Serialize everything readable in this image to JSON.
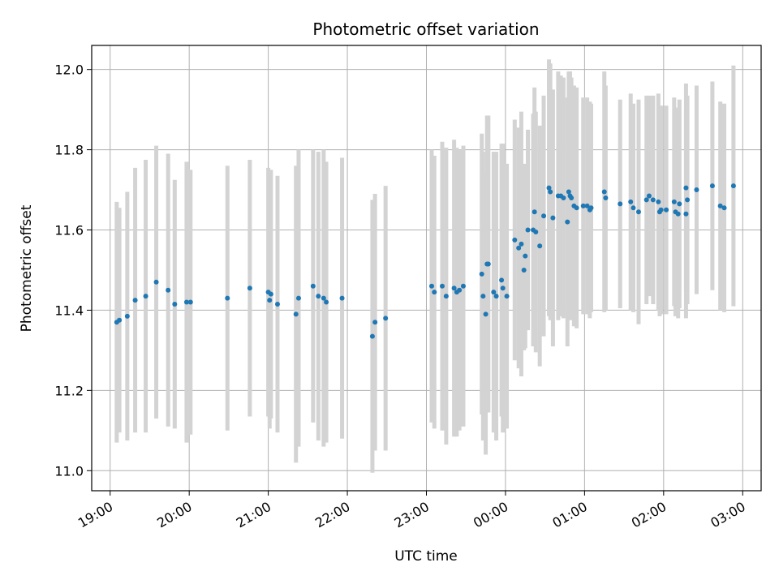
{
  "chart_data": {
    "type": "scatter",
    "title": "Photometric offset variation",
    "xlabel": "UTC time",
    "ylabel": "Photometric offset",
    "xlim": [
      "18:46",
      "03:14"
    ],
    "ylim": [
      10.95,
      12.06
    ],
    "x_ticks": [
      "19:00",
      "20:00",
      "21:00",
      "22:00",
      "23:00",
      "00:00",
      "01:00",
      "02:00",
      "03:00"
    ],
    "y_ticks": [
      "11.0",
      "11.2",
      "11.4",
      "11.6",
      "11.8",
      "12.0"
    ],
    "grid": true,
    "colors": {
      "point": "#1f77b4",
      "errorbar": "#d3d3d3",
      "grid": "#b0b0b0"
    },
    "series": [
      {
        "points": [
          {
            "x": "19:05",
            "y": 11.37,
            "err": 0.3
          },
          {
            "x": "19:07",
            "y": 11.375,
            "err": 0.28
          },
          {
            "x": "19:13",
            "y": 11.385,
            "err": 0.31
          },
          {
            "x": "19:19",
            "y": 11.425,
            "err": 0.33
          },
          {
            "x": "19:27",
            "y": 11.435,
            "err": 0.34
          },
          {
            "x": "19:35",
            "y": 11.47,
            "err": 0.34
          },
          {
            "x": "19:44",
            "y": 11.45,
            "err": 0.34
          },
          {
            "x": "19:49",
            "y": 11.415,
            "err": 0.31
          },
          {
            "x": "19:58",
            "y": 11.42,
            "err": 0.35
          },
          {
            "x": "20:01",
            "y": 11.42,
            "err": 0.33
          },
          {
            "x": "20:29",
            "y": 11.43,
            "err": 0.33
          },
          {
            "x": "20:46",
            "y": 11.455,
            "err": 0.32
          },
          {
            "x": "21:00",
            "y": 11.445,
            "err": 0.31
          },
          {
            "x": "21:01",
            "y": 11.425,
            "err": 0.32
          },
          {
            "x": "21:02",
            "y": 11.44,
            "err": 0.31
          },
          {
            "x": "21:07",
            "y": 11.415,
            "err": 0.32
          },
          {
            "x": "21:21",
            "y": 11.39,
            "err": 0.37
          },
          {
            "x": "21:23",
            "y": 11.43,
            "err": 0.37
          },
          {
            "x": "21:34",
            "y": 11.46,
            "err": 0.34
          },
          {
            "x": "21:38",
            "y": 11.435,
            "err": 0.36
          },
          {
            "x": "21:42",
            "y": 11.43,
            "err": 0.37
          },
          {
            "x": "21:44",
            "y": 11.42,
            "err": 0.35
          },
          {
            "x": "21:56",
            "y": 11.43,
            "err": 0.35
          },
          {
            "x": "22:19",
            "y": 11.335,
            "err": 0.34
          },
          {
            "x": "22:21",
            "y": 11.37,
            "err": 0.32
          },
          {
            "x": "22:29",
            "y": 11.38,
            "err": 0.33
          },
          {
            "x": "23:04",
            "y": 11.46,
            "err": 0.34
          },
          {
            "x": "23:06",
            "y": 11.445,
            "err": 0.34
          },
          {
            "x": "23:12",
            "y": 11.46,
            "err": 0.36
          },
          {
            "x": "23:15",
            "y": 11.435,
            "err": 0.37
          },
          {
            "x": "23:21",
            "y": 11.455,
            "err": 0.37
          },
          {
            "x": "23:23",
            "y": 11.445,
            "err": 0.36
          },
          {
            "x": "23:25",
            "y": 11.45,
            "err": 0.35
          },
          {
            "x": "23:28",
            "y": 11.46,
            "err": 0.35
          },
          {
            "x": "23:42",
            "y": 11.49,
            "err": 0.35
          },
          {
            "x": "23:43",
            "y": 11.435,
            "err": 0.36
          },
          {
            "x": "23:45",
            "y": 11.39,
            "err": 0.35
          },
          {
            "x": "23:46",
            "y": 11.515,
            "err": 0.37
          },
          {
            "x": "23:47",
            "y": 11.515,
            "err": 0.37
          },
          {
            "x": "23:51",
            "y": 11.445,
            "err": 0.35
          },
          {
            "x": "23:53",
            "y": 11.435,
            "err": 0.36
          },
          {
            "x": "23:57",
            "y": 11.475,
            "err": 0.34
          },
          {
            "x": "23:58",
            "y": 11.455,
            "err": 0.36
          },
          {
            "x": "00:01",
            "y": 11.435,
            "err": 0.33
          },
          {
            "x": "00:07",
            "y": 11.575,
            "err": 0.3
          },
          {
            "x": "00:10",
            "y": 11.555,
            "err": 0.3
          },
          {
            "x": "00:12",
            "y": 11.565,
            "err": 0.33
          },
          {
            "x": "00:14",
            "y": 11.5,
            "err": 0.2
          },
          {
            "x": "00:15",
            "y": 11.535,
            "err": 0.23
          },
          {
            "x": "00:17",
            "y": 11.6,
            "err": 0.25
          },
          {
            "x": "00:21",
            "y": 11.6,
            "err": 0.29
          },
          {
            "x": "00:22",
            "y": 11.645,
            "err": 0.31
          },
          {
            "x": "00:23",
            "y": 11.595,
            "err": 0.3
          },
          {
            "x": "00:26",
            "y": 11.56,
            "err": 0.3
          },
          {
            "x": "00:29",
            "y": 11.635,
            "err": 0.3
          },
          {
            "x": "00:33",
            "y": 11.705,
            "err": 0.32
          },
          {
            "x": "00:34",
            "y": 11.695,
            "err": 0.32
          },
          {
            "x": "00:36",
            "y": 11.63,
            "err": 0.32
          },
          {
            "x": "00:40",
            "y": 11.685,
            "err": 0.31
          },
          {
            "x": "00:42",
            "y": 11.685,
            "err": 0.3
          },
          {
            "x": "00:44",
            "y": 11.68,
            "err": 0.3
          },
          {
            "x": "00:47",
            "y": 11.62,
            "err": 0.31
          },
          {
            "x": "00:48",
            "y": 11.695,
            "err": 0.3
          },
          {
            "x": "00:49",
            "y": 11.685,
            "err": 0.31
          },
          {
            "x": "00:50",
            "y": 11.68,
            "err": 0.3
          },
          {
            "x": "00:52",
            "y": 11.66,
            "err": 0.3
          },
          {
            "x": "00:54",
            "y": 11.655,
            "err": 0.3
          },
          {
            "x": "00:59",
            "y": 11.66,
            "err": 0.27
          },
          {
            "x": "01:02",
            "y": 11.66,
            "err": 0.27
          },
          {
            "x": "01:04",
            "y": 11.65,
            "err": 0.27
          },
          {
            "x": "01:05",
            "y": 11.655,
            "err": 0.26
          },
          {
            "x": "01:15",
            "y": 11.695,
            "err": 0.3
          },
          {
            "x": "01:16",
            "y": 11.68,
            "err": 0.28
          },
          {
            "x": "01:27",
            "y": 11.665,
            "err": 0.26
          },
          {
            "x": "01:35",
            "y": 11.67,
            "err": 0.27
          },
          {
            "x": "01:37",
            "y": 11.655,
            "err": 0.26
          },
          {
            "x": "01:41",
            "y": 11.645,
            "err": 0.28
          },
          {
            "x": "01:47",
            "y": 11.675,
            "err": 0.26
          },
          {
            "x": "01:49",
            "y": 11.685,
            "err": 0.25
          },
          {
            "x": "01:52",
            "y": 11.675,
            "err": 0.26
          },
          {
            "x": "01:56",
            "y": 11.67,
            "err": 0.27
          },
          {
            "x": "01:57",
            "y": 11.645,
            "err": 0.26
          },
          {
            "x": "01:58",
            "y": 11.65,
            "err": 0.26
          },
          {
            "x": "02:02",
            "y": 11.65,
            "err": 0.26
          },
          {
            "x": "02:08",
            "y": 11.67,
            "err": 0.26
          },
          {
            "x": "02:09",
            "y": 11.645,
            "err": 0.26
          },
          {
            "x": "02:11",
            "y": 11.64,
            "err": 0.26
          },
          {
            "x": "02:12",
            "y": 11.665,
            "err": 0.26
          },
          {
            "x": "02:17",
            "y": 11.64,
            "err": 0.26
          },
          {
            "x": "02:17",
            "y": 11.705,
            "err": 0.26
          },
          {
            "x": "02:18",
            "y": 11.675,
            "err": 0.26
          },
          {
            "x": "02:25",
            "y": 11.7,
            "err": 0.26
          },
          {
            "x": "02:37",
            "y": 11.71,
            "err": 0.26
          },
          {
            "x": "02:43",
            "y": 11.66,
            "err": 0.26
          },
          {
            "x": "02:46",
            "y": 11.655,
            "err": 0.26
          },
          {
            "x": "02:53",
            "y": 11.71,
            "err": 0.3
          }
        ]
      }
    ]
  }
}
